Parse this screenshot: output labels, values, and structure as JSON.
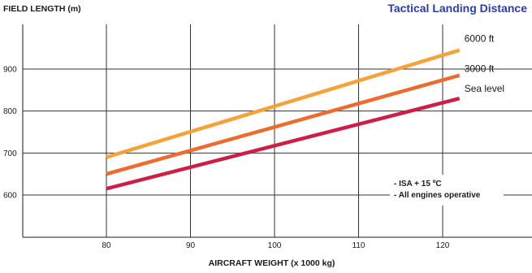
{
  "chart_data": {
    "type": "line",
    "title": "Tactical Landing Distance",
    "ylabel": "FIELD LENGTH (m)",
    "xlabel": "AIRCRAFT WEIGHT (x 1000 kg)",
    "xlim": [
      70,
      130
    ],
    "ylim": [
      500,
      1000
    ],
    "x_ticks": [
      80,
      90,
      100,
      110,
      120
    ],
    "y_ticks": [
      600,
      700,
      800,
      900
    ],
    "grid": true,
    "series": [
      {
        "name": "6000 ft",
        "x": [
          80,
          122
        ],
        "values": [
          690,
          945
        ],
        "color": "#f5a23a"
      },
      {
        "name": "3000 ft",
        "x": [
          80,
          122
        ],
        "values": [
          650,
          885
        ],
        "color": "#ec6b2e"
      },
      {
        "name": "Sea level",
        "x": [
          80,
          122
        ],
        "values": [
          615,
          830
        ],
        "color": "#cc1f45"
      }
    ],
    "annotations": [
      "- ISA + 15 ºC",
      "- All engines operative"
    ]
  }
}
